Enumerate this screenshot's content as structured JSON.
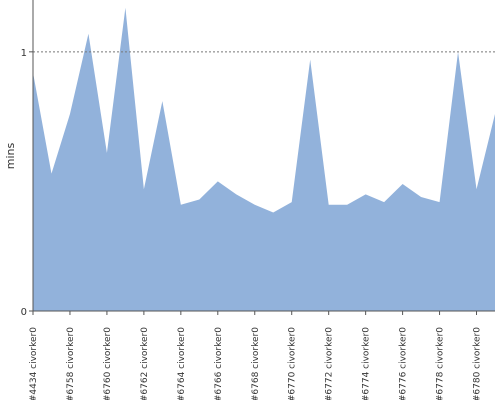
{
  "chart_data": {
    "type": "area",
    "title": "",
    "xlabel": "",
    "ylabel": "mins",
    "ylim": [
      0,
      1.2
    ],
    "y_ticks": [
      {
        "value": 0,
        "label": "0"
      },
      {
        "value": 1,
        "label": "1"
      }
    ],
    "reference_line": {
      "value": 1,
      "style": "dotted"
    },
    "grid": false,
    "colors": {
      "fill": "#92b2db",
      "axis": "#555555",
      "reference": "#777777"
    },
    "x_tick_labels": [
      "#4434 civorker0",
      "#6758 civorker0",
      "#6760 civorker0",
      "#6762 civorker0",
      "#6764 civorker0",
      "#6766 civorker0",
      "#6768 civorker0",
      "#6770 civorker0",
      "#6772 civorker0",
      "#6774 civorker0",
      "#6776 civorker0",
      "#6778 civorker0",
      "#6780 civorker0"
    ],
    "series": [
      {
        "values": [
          0.92,
          0.53,
          0.76,
          1.07,
          0.61,
          1.17,
          0.47,
          0.81,
          0.41,
          0.43,
          0.5,
          0.45,
          0.41,
          0.38,
          0.42,
          0.97,
          0.41,
          0.41,
          0.45,
          0.42,
          0.49,
          0.44,
          0.42,
          1.0,
          0.47,
          0.76
        ]
      }
    ]
  }
}
